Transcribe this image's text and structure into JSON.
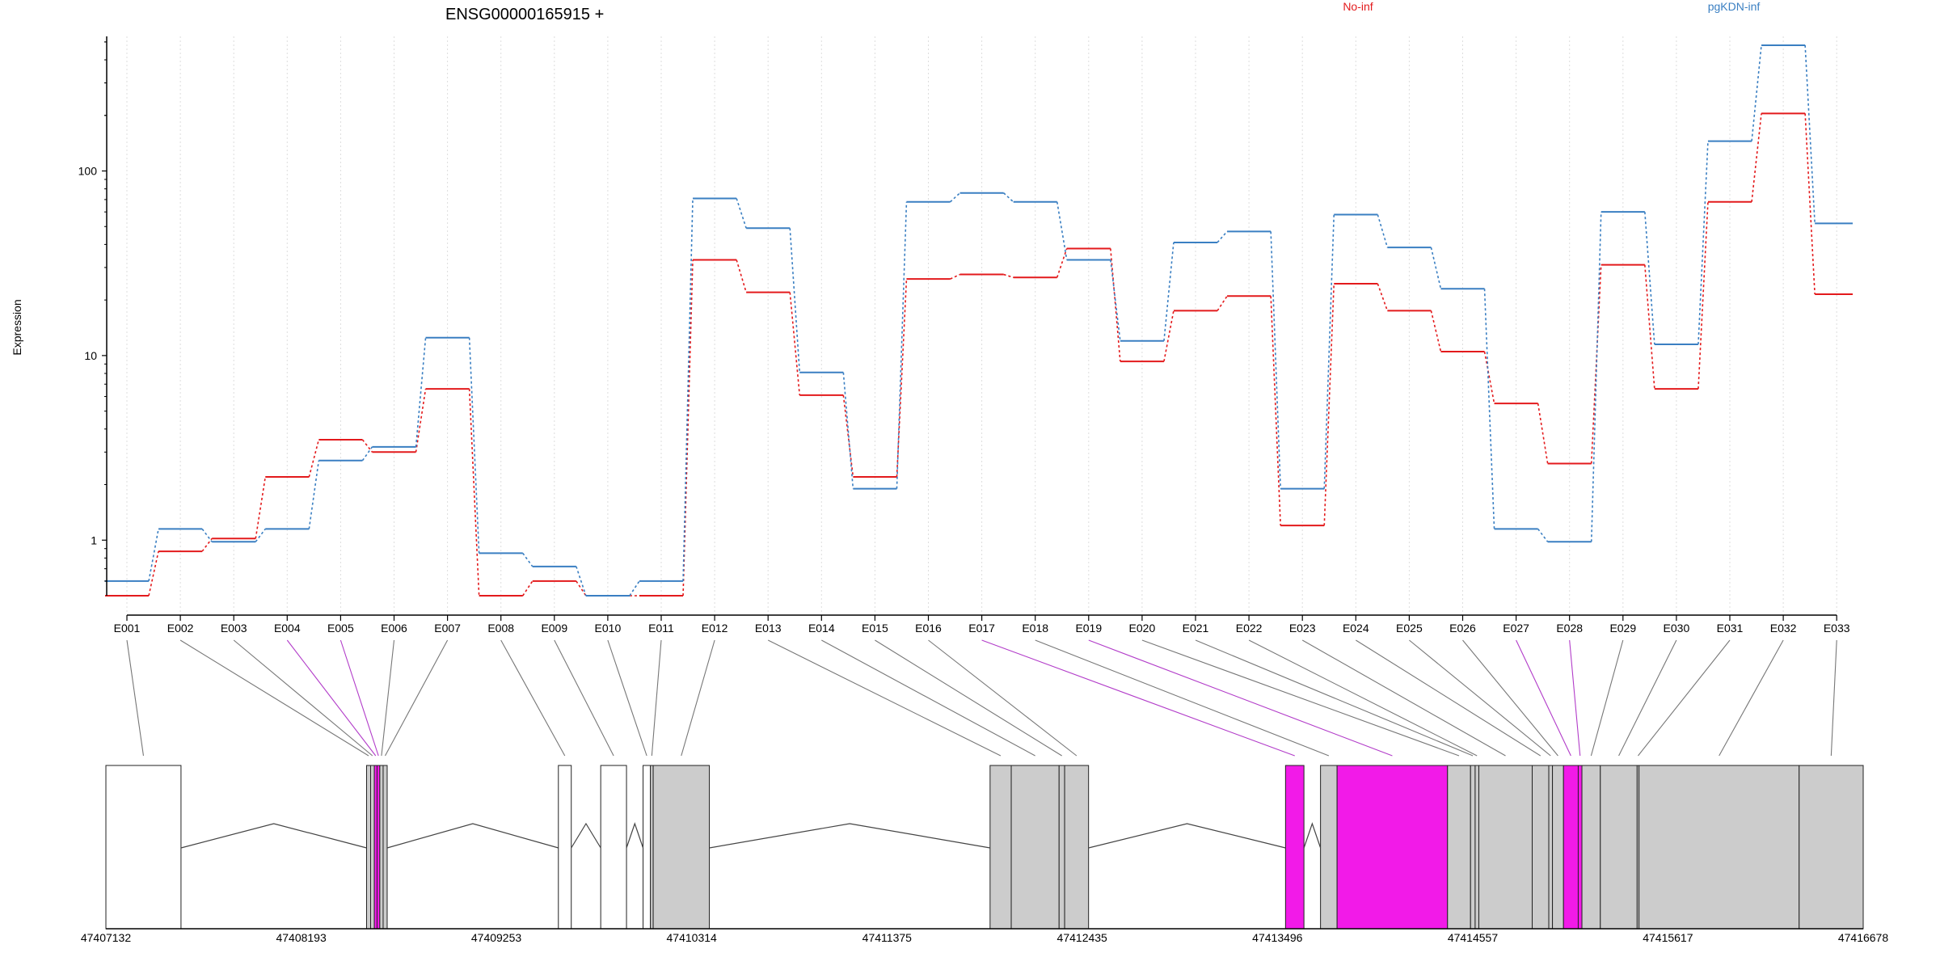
{
  "chart_data": {
    "type": "line",
    "title": "ENSG00000165915 +",
    "ylabel": "Expression",
    "y_scale": "log",
    "ylim": [
      0.5,
      520
    ],
    "y_ticks": [
      1,
      10,
      100
    ],
    "y_tick_labels": [
      "1",
      "10",
      "100"
    ],
    "grid": "vertical dotted at exon centers",
    "legend_placement": "top, inline",
    "categories": [
      "E001",
      "E002",
      "E003",
      "E004",
      "E005",
      "E006",
      "E007",
      "E008",
      "E009",
      "E010",
      "E011",
      "E012",
      "E013",
      "E014",
      "E015",
      "E016",
      "E017",
      "E018",
      "E019",
      "E020",
      "E021",
      "E022",
      "E023",
      "E024",
      "E025",
      "E026",
      "E027",
      "E028",
      "E029",
      "E030",
      "E031",
      "E032",
      "E033"
    ],
    "series": [
      {
        "name": "No-inf",
        "color": "#e31a1c",
        "values": [
          0.5,
          0.87,
          1.02,
          2.2,
          3.5,
          3.0,
          6.6,
          0.5,
          0.6,
          0.5,
          0.5,
          33,
          22,
          6.1,
          2.2,
          26,
          27.5,
          26.5,
          38,
          9.3,
          17.5,
          21,
          1.2,
          24.5,
          17.5,
          10.5,
          5.5,
          2.6,
          31,
          6.6,
          68,
          205,
          21.5
        ]
      },
      {
        "name": "pgKDN-inf",
        "color": "#3a7fc2",
        "values": [
          0.6,
          1.15,
          0.98,
          1.15,
          2.7,
          3.2,
          12.5,
          0.85,
          0.72,
          0.5,
          0.6,
          71,
          49,
          8.1,
          1.9,
          68,
          76,
          68,
          33,
          12,
          41,
          47,
          1.9,
          58,
          38.5,
          23,
          1.15,
          0.98,
          60,
          11.5,
          145,
          480,
          52
        ]
      }
    ],
    "genomic_axis": {
      "tick_labels": [
        "47407132",
        "47408193",
        "47409253",
        "47410314",
        "47411375",
        "47412435",
        "47413496",
        "47414557",
        "47415617",
        "47416678"
      ]
    },
    "highlight_color": "#f21ae8",
    "exon_fill": "#cccccc",
    "exons": [
      {
        "id": "E001",
        "start": 47407132,
        "end": 47407540,
        "hl": false,
        "fill": false
      },
      {
        "id": "E002",
        "start": 47408548,
        "end": 47408570,
        "hl": false,
        "fill": true
      },
      {
        "id": "E003",
        "start": 47408570,
        "end": 47408590,
        "hl": false,
        "fill": true
      },
      {
        "id": "E004",
        "start": 47408590,
        "end": 47408605,
        "hl": true,
        "fill": true
      },
      {
        "id": "E005",
        "start": 47408605,
        "end": 47408620,
        "hl": true,
        "fill": true
      },
      {
        "id": "E006",
        "start": 47408620,
        "end": 47408638,
        "hl": false,
        "fill": true
      },
      {
        "id": "E007",
        "start": 47408638,
        "end": 47408660,
        "hl": false,
        "fill": true
      },
      {
        "id": "E008",
        "start": 47409590,
        "end": 47409660,
        "hl": false,
        "fill": false
      },
      {
        "id": "E009",
        "start": 47409820,
        "end": 47409960,
        "hl": false,
        "fill": false
      },
      {
        "id": "E010",
        "start": 47410050,
        "end": 47410090,
        "hl": false,
        "fill": false
      },
      {
        "id": "E011",
        "start": 47410090,
        "end": 47410105,
        "hl": false,
        "fill": true
      },
      {
        "id": "E012",
        "start": 47410105,
        "end": 47410410,
        "hl": false,
        "fill": true
      },
      {
        "id": "E013",
        "start": 47411935,
        "end": 47412050,
        "hl": false,
        "fill": true
      },
      {
        "id": "E014",
        "start": 47412050,
        "end": 47412310,
        "hl": false,
        "fill": true
      },
      {
        "id": "E015",
        "start": 47412310,
        "end": 47412340,
        "hl": false,
        "fill": true
      },
      {
        "id": "E016",
        "start": 47412340,
        "end": 47412470,
        "hl": false,
        "fill": true
      },
      {
        "id": "E017",
        "start": 47413540,
        "end": 47413640,
        "hl": true,
        "fill": true
      },
      {
        "id": "E018",
        "start": 47413730,
        "end": 47413820,
        "hl": false,
        "fill": true
      },
      {
        "id": "E019",
        "start": 47413820,
        "end": 47414420,
        "hl": true,
        "fill": true
      },
      {
        "id": "E020",
        "start": 47414420,
        "end": 47414545,
        "hl": false,
        "fill": true
      },
      {
        "id": "E021",
        "start": 47414545,
        "end": 47414570,
        "hl": false,
        "fill": true
      },
      {
        "id": "E022",
        "start": 47414570,
        "end": 47414590,
        "hl": false,
        "fill": true
      },
      {
        "id": "E023",
        "start": 47414590,
        "end": 47414880,
        "hl": false,
        "fill": true
      },
      {
        "id": "E024",
        "start": 47414880,
        "end": 47414970,
        "hl": false,
        "fill": true
      },
      {
        "id": "E025",
        "start": 47414970,
        "end": 47414990,
        "hl": false,
        "fill": true
      },
      {
        "id": "E026",
        "start": 47414990,
        "end": 47415050,
        "hl": false,
        "fill": true
      },
      {
        "id": "E027",
        "start": 47415050,
        "end": 47415130,
        "hl": true,
        "fill": true
      },
      {
        "id": "E028",
        "start": 47415130,
        "end": 47415150,
        "hl": true,
        "fill": true
      },
      {
        "id": "E029",
        "start": 47415150,
        "end": 47415250,
        "hl": false,
        "fill": true
      },
      {
        "id": "E030",
        "start": 47415250,
        "end": 47415450,
        "hl": false,
        "fill": true
      },
      {
        "id": "E031",
        "start": 47415450,
        "end": 47415460,
        "hl": false,
        "fill": true
      },
      {
        "id": "E032",
        "start": 47415460,
        "end": 47416330,
        "hl": false,
        "fill": true
      },
      {
        "id": "E033",
        "start": 47416330,
        "end": 47416678,
        "hl": false,
        "fill": true
      }
    ]
  }
}
